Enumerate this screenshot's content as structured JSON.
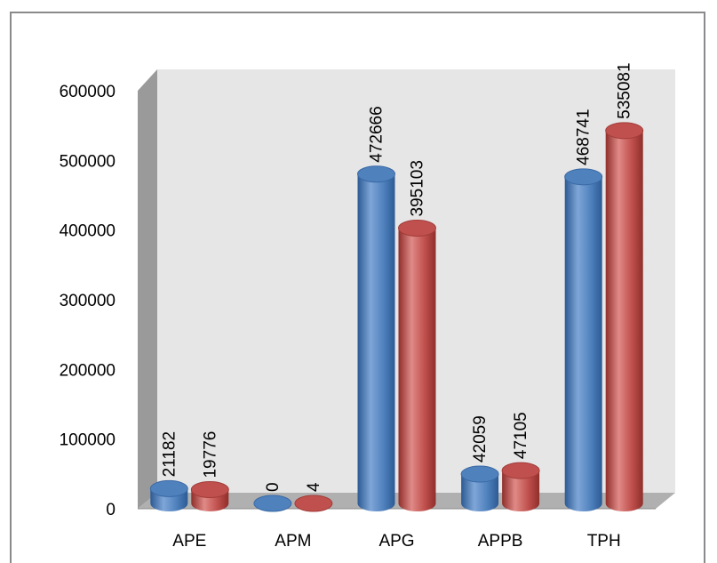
{
  "chart_data": {
    "type": "bar",
    "style": "3d-cylinder",
    "categories": [
      "APE",
      "APM",
      "APG",
      "APPB",
      "TPH"
    ],
    "series": [
      {
        "values": [
          21182,
          0,
          472666,
          42059,
          468741
        ],
        "color": "#4f81bd"
      },
      {
        "values": [
          19776,
          4,
          395103,
          47105,
          535081
        ],
        "color": "#c0504d"
      }
    ],
    "yticks": [
      "0",
      "100000",
      "200000",
      "300000",
      "400000",
      "500000",
      "600000"
    ],
    "ylim": [
      0,
      600000
    ],
    "data_labels": {
      "series_0": [
        "21182",
        "0",
        "472666",
        "42059",
        "468741"
      ],
      "series_1": [
        "19776",
        "4",
        "395103",
        "47105",
        "535081"
      ]
    },
    "grid": false,
    "legend": "none",
    "title": "",
    "xlabel": "",
    "ylabel": "",
    "wall_color": "#e6e6e6",
    "floor_color": "#b0b0b0"
  }
}
